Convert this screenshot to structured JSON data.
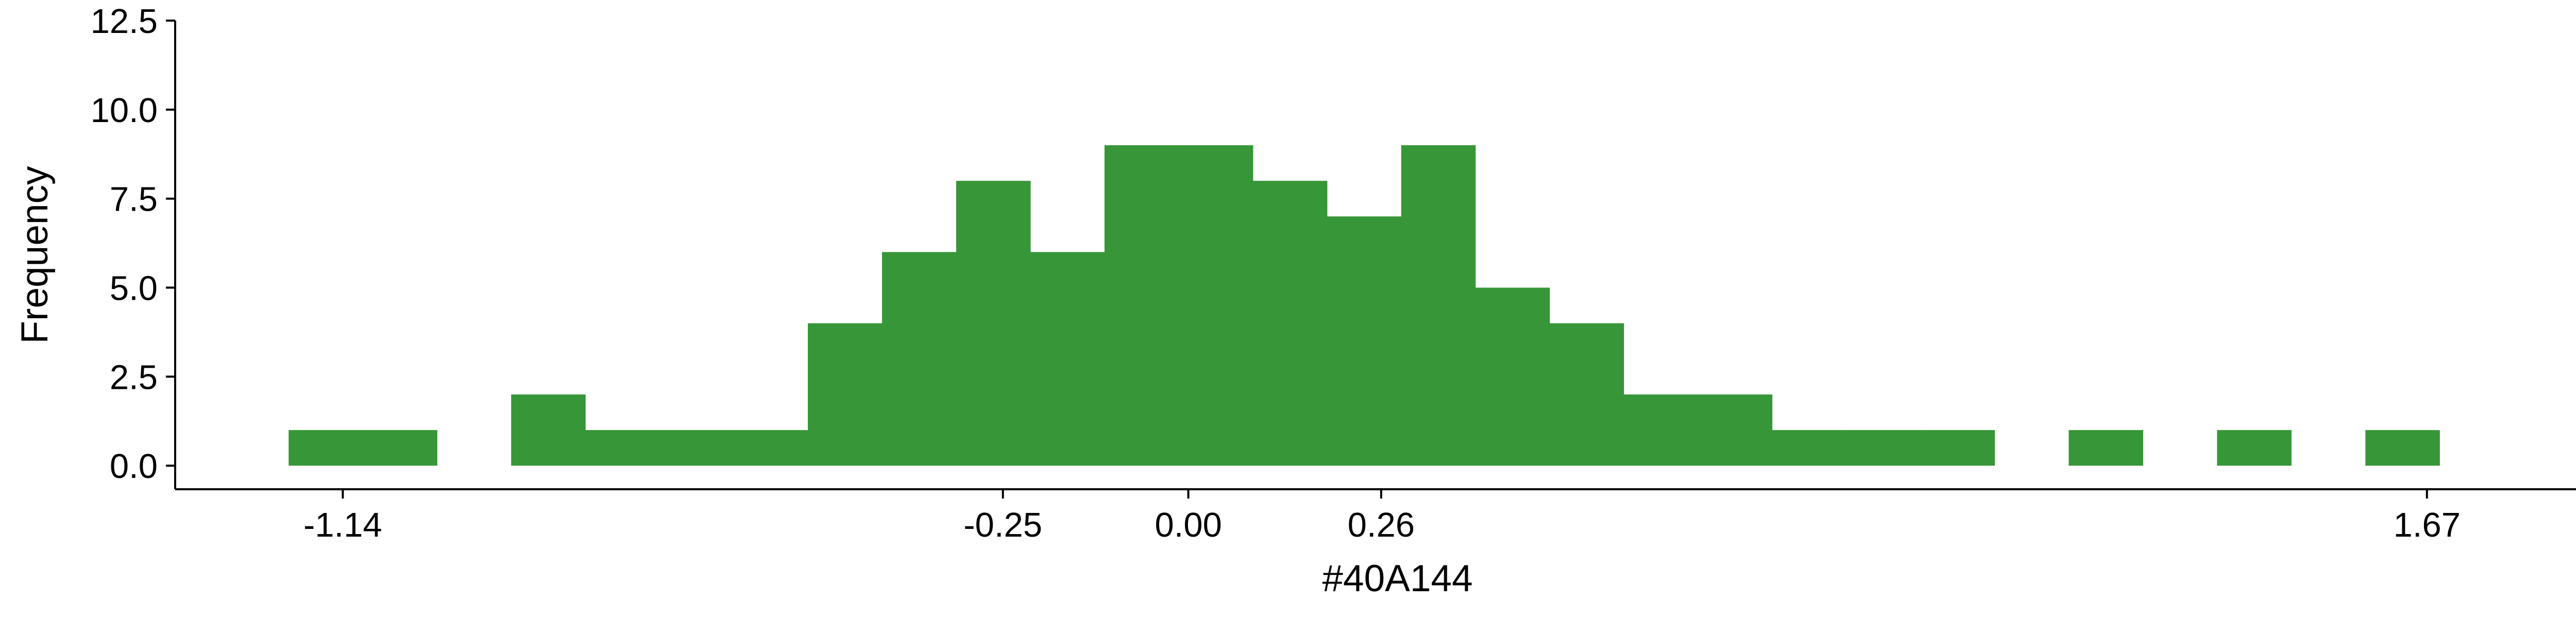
{
  "chart_data": {
    "type": "bar",
    "title": "",
    "xlabel": "#40A144",
    "ylabel": "Frequency",
    "bar_color": "#379637",
    "xlim": [
      -1.366,
      1.93
    ],
    "ylim": [
      -0.662,
      12.5
    ],
    "x_ticks": [
      {
        "value": -1.14,
        "label": "-1.14"
      },
      {
        "value": -0.25,
        "label": "-0.25"
      },
      {
        "value": 0.0,
        "label": "0.00"
      },
      {
        "value": 0.26,
        "label": "0.26"
      },
      {
        "value": 1.67,
        "label": "1.67"
      }
    ],
    "y_ticks": [
      {
        "value": 0.0,
        "label": "0.0"
      },
      {
        "value": 2.5,
        "label": "2.5"
      },
      {
        "value": 5.0,
        "label": "5.0"
      },
      {
        "value": 7.5,
        "label": "7.5"
      },
      {
        "value": 10.0,
        "label": "10.0"
      },
      {
        "value": 12.5,
        "label": "12.5"
      }
    ],
    "bins": [
      {
        "x0": -1.213,
        "x1": -1.113,
        "count": 1
      },
      {
        "x0": -1.113,
        "x1": -1.013,
        "count": 1
      },
      {
        "x0": -1.013,
        "x1": -0.913,
        "count": 0
      },
      {
        "x0": -0.913,
        "x1": -0.813,
        "count": 2
      },
      {
        "x0": -0.813,
        "x1": -0.713,
        "count": 1
      },
      {
        "x0": -0.713,
        "x1": -0.613,
        "count": 1
      },
      {
        "x0": -0.613,
        "x1": -0.513,
        "count": 1
      },
      {
        "x0": -0.513,
        "x1": -0.413,
        "count": 4
      },
      {
        "x0": -0.413,
        "x1": -0.313,
        "count": 6
      },
      {
        "x0": -0.313,
        "x1": -0.213,
        "count": 8
      },
      {
        "x0": -0.213,
        "x1": -0.113,
        "count": 6
      },
      {
        "x0": -0.113,
        "x1": -0.013,
        "count": 9
      },
      {
        "x0": -0.013,
        "x1": 0.087,
        "count": 9
      },
      {
        "x0": 0.087,
        "x1": 0.187,
        "count": 8
      },
      {
        "x0": 0.187,
        "x1": 0.287,
        "count": 7
      },
      {
        "x0": 0.287,
        "x1": 0.387,
        "count": 9
      },
      {
        "x0": 0.387,
        "x1": 0.487,
        "count": 5
      },
      {
        "x0": 0.487,
        "x1": 0.587,
        "count": 4
      },
      {
        "x0": 0.587,
        "x1": 0.687,
        "count": 2
      },
      {
        "x0": 0.687,
        "x1": 0.787,
        "count": 2
      },
      {
        "x0": 0.787,
        "x1": 0.887,
        "count": 1
      },
      {
        "x0": 0.887,
        "x1": 0.987,
        "count": 1
      },
      {
        "x0": 0.987,
        "x1": 1.087,
        "count": 1
      },
      {
        "x0": 1.087,
        "x1": 1.187,
        "count": 0
      },
      {
        "x0": 1.187,
        "x1": 1.287,
        "count": 1
      },
      {
        "x0": 1.287,
        "x1": 1.387,
        "count": 0
      },
      {
        "x0": 1.387,
        "x1": 1.487,
        "count": 1
      },
      {
        "x0": 1.487,
        "x1": 1.587,
        "count": 0
      },
      {
        "x0": 1.587,
        "x1": 1.687,
        "count": 1
      }
    ]
  }
}
